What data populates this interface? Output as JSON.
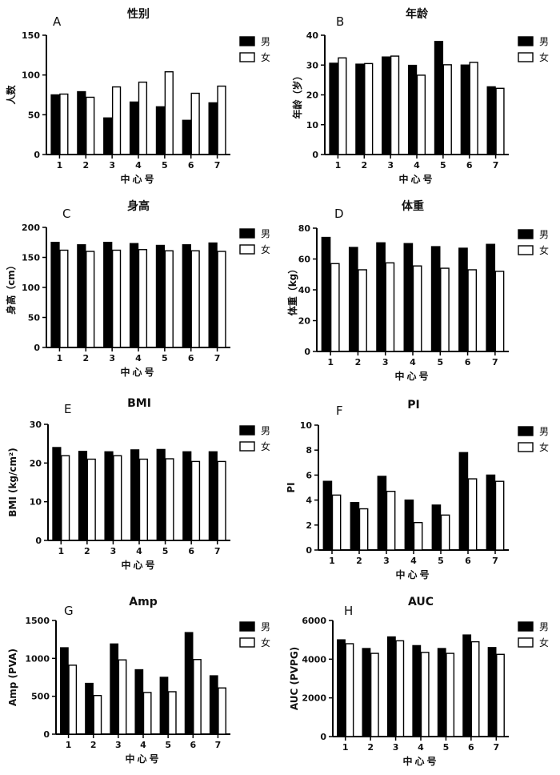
{
  "legend": {
    "male": "男",
    "female": "女"
  },
  "colors": {
    "male": "#000000",
    "female": "#ffffff",
    "axis": "#000000"
  },
  "chart_data": [
    {
      "id": "A",
      "type": "bar",
      "letter": "A",
      "title": "性别",
      "xlabel": "中心号",
      "ylabel": "人数",
      "categories": [
        "1",
        "2",
        "3",
        "4",
        "5",
        "6",
        "7"
      ],
      "ylim": [
        0,
        150
      ],
      "yticks": [
        0,
        50,
        100,
        150
      ],
      "series": [
        {
          "name": "男",
          "values": [
            75,
            79,
            46,
            66,
            60,
            43,
            65
          ]
        },
        {
          "name": "女",
          "values": [
            76,
            72,
            85,
            91,
            104,
            77,
            86
          ]
        }
      ]
    },
    {
      "id": "B",
      "type": "bar",
      "letter": "B",
      "title": "年龄",
      "xlabel": "中心号",
      "ylabel": "年龄（岁）",
      "categories": [
        "1",
        "2",
        "3",
        "4",
        "5",
        "6",
        "7"
      ],
      "ylim": [
        0,
        40
      ],
      "yticks": [
        0,
        10,
        20,
        30,
        40
      ],
      "series": [
        {
          "name": "男",
          "values": [
            30.6,
            30.3,
            32.7,
            29.9,
            37.9,
            30.0,
            22.7
          ]
        },
        {
          "name": "女",
          "values": [
            32.4,
            30.5,
            33.0,
            26.6,
            30.1,
            30.9,
            22.2
          ]
        }
      ]
    },
    {
      "id": "C",
      "type": "bar",
      "letter": "C",
      "title": "身高",
      "xlabel": "中心号",
      "ylabel": "身高（cm）",
      "categories": [
        "1",
        "2",
        "3",
        "4",
        "5",
        "6",
        "7"
      ],
      "ylim": [
        0,
        200
      ],
      "yticks": [
        0,
        50,
        100,
        150,
        200
      ],
      "series": [
        {
          "name": "男",
          "values": [
            175,
            171,
            175,
            173,
            170,
            171,
            174
          ]
        },
        {
          "name": "女",
          "values": [
            162,
            160,
            162,
            163,
            161,
            161,
            160
          ]
        }
      ]
    },
    {
      "id": "D",
      "type": "bar",
      "letter": "D",
      "title": "体重",
      "xlabel": "中心号",
      "ylabel": "体重（kg）",
      "categories": [
        "1",
        "2",
        "3",
        "4",
        "5",
        "6",
        "7"
      ],
      "ylim": [
        0,
        80
      ],
      "yticks": [
        0,
        20,
        40,
        60,
        80
      ],
      "series": [
        {
          "name": "男",
          "values": [
            74,
            67.5,
            70.5,
            70,
            68,
            67,
            69.5
          ]
        },
        {
          "name": "女",
          "values": [
            57,
            53,
            57.5,
            55.5,
            54,
            53,
            52
          ]
        }
      ]
    },
    {
      "id": "E",
      "type": "bar",
      "letter": "E",
      "title": "BMI",
      "xlabel": "中心号",
      "ylabel": "BMI (kg/cm²)",
      "categories": [
        "1",
        "2",
        "3",
        "4",
        "5",
        "6",
        "7"
      ],
      "ylim": [
        0,
        30
      ],
      "yticks": [
        0,
        10,
        20,
        30
      ],
      "series": [
        {
          "name": "男",
          "values": [
            24.0,
            23.0,
            22.9,
            23.4,
            23.5,
            22.9,
            22.9
          ]
        },
        {
          "name": "女",
          "values": [
            21.9,
            21.0,
            21.9,
            21.0,
            21.1,
            20.4,
            20.4
          ]
        }
      ]
    },
    {
      "id": "F",
      "type": "bar",
      "letter": "F",
      "title": "PI",
      "xlabel": "中心号",
      "ylabel": "PI",
      "categories": [
        "1",
        "2",
        "3",
        "4",
        "5",
        "6",
        "7"
      ],
      "ylim": [
        0,
        10
      ],
      "yticks": [
        0,
        2,
        4,
        6,
        8,
        10
      ],
      "series": [
        {
          "name": "男",
          "values": [
            5.5,
            3.8,
            5.9,
            4.0,
            3.6,
            7.8,
            6.0
          ]
        },
        {
          "name": "女",
          "values": [
            4.4,
            3.3,
            4.7,
            2.2,
            2.8,
            5.7,
            5.5
          ]
        }
      ]
    },
    {
      "id": "G",
      "type": "bar",
      "letter": "G",
      "title": "Amp",
      "xlabel": "中心号",
      "ylabel": "Amp (PVA)",
      "categories": [
        "1",
        "2",
        "3",
        "4",
        "5",
        "6",
        "7"
      ],
      "ylim": [
        0,
        1500
      ],
      "yticks": [
        0,
        500,
        1000,
        1500
      ],
      "series": [
        {
          "name": "男",
          "values": [
            1140,
            670,
            1190,
            850,
            750,
            1340,
            770
          ]
        },
        {
          "name": "女",
          "values": [
            910,
            510,
            980,
            550,
            560,
            985,
            610
          ]
        }
      ]
    },
    {
      "id": "H",
      "type": "bar",
      "letter": "H",
      "title": "AUC",
      "xlabel": "中心号",
      "ylabel": "AUC (PVPG)",
      "categories": [
        "1",
        "2",
        "3",
        "4",
        "5",
        "6",
        "7"
      ],
      "ylim": [
        0,
        6000
      ],
      "yticks": [
        0,
        2000,
        4000,
        6000
      ],
      "series": [
        {
          "name": "男",
          "values": [
            5000,
            4550,
            5150,
            4700,
            4550,
            5250,
            4600
          ]
        },
        {
          "name": "女",
          "values": [
            4800,
            4300,
            4950,
            4350,
            4300,
            4900,
            4250
          ]
        }
      ]
    }
  ]
}
